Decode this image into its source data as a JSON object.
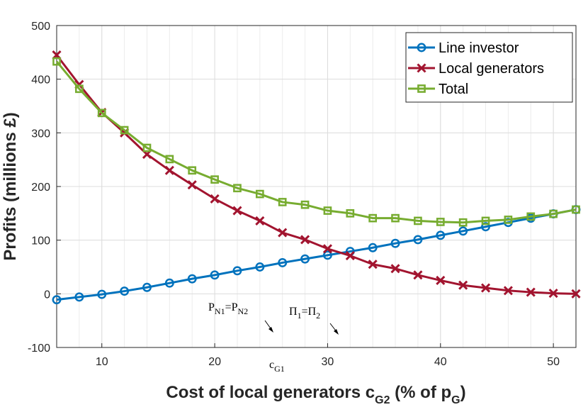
{
  "chart_data": {
    "type": "line",
    "title": "",
    "xlabel_main": "Cost of local generators c",
    "xlabel_sub": "G2",
    "xlabel_mid": " (% of p",
    "xlabel_sub2": "G",
    "xlabel_end": ")",
    "ylabel": "Profits (millions £)",
    "xlim": [
      6,
      52
    ],
    "ylim": [
      -100,
      500
    ],
    "xticks": [
      10,
      20,
      30,
      40,
      50
    ],
    "yticks": [
      -100,
      0,
      100,
      200,
      300,
      400,
      500
    ],
    "x_minor_step": 2,
    "grid": true,
    "legend_position": "top-right",
    "x": [
      6,
      8,
      10,
      12,
      14,
      16,
      18,
      20,
      22,
      24,
      26,
      28,
      30,
      32,
      34,
      36,
      38,
      40,
      42,
      44,
      46,
      48,
      50,
      52
    ],
    "series": [
      {
        "name": "Line investor",
        "color": "#0072BD",
        "marker": "circle",
        "values": [
          -11,
          -6,
          -1,
          5,
          12,
          20,
          28,
          35,
          43,
          50,
          58,
          65,
          72,
          79,
          86,
          94,
          101,
          109,
          117,
          125,
          133,
          141,
          149,
          157
        ]
      },
      {
        "name": "Local generators",
        "color": "#A2142F",
        "marker": "x",
        "values": [
          445,
          390,
          338,
          300,
          260,
          230,
          203,
          177,
          155,
          136,
          114,
          101,
          84,
          71,
          55,
          47,
          35,
          25,
          16,
          11,
          6,
          3,
          1,
          0
        ]
      },
      {
        "name": "Total",
        "color": "#77AC30",
        "marker": "square",
        "values": [
          433,
          382,
          337,
          305,
          272,
          251,
          230,
          213,
          197,
          186,
          171,
          166,
          155,
          150,
          141,
          141,
          136,
          134,
          133,
          136,
          138,
          144,
          149,
          157
        ]
      }
    ],
    "annotations": [
      {
        "main": "P",
        "sub1": "N1",
        "eq": "=P",
        "sub2": "N2",
        "x": 25.6
      },
      {
        "main": "Π",
        "sub1": "1",
        "eq": "=Π",
        "sub2": "2",
        "x": 31.2
      },
      {
        "main": "c",
        "sub1": "G1",
        "x": 24.5
      }
    ]
  }
}
